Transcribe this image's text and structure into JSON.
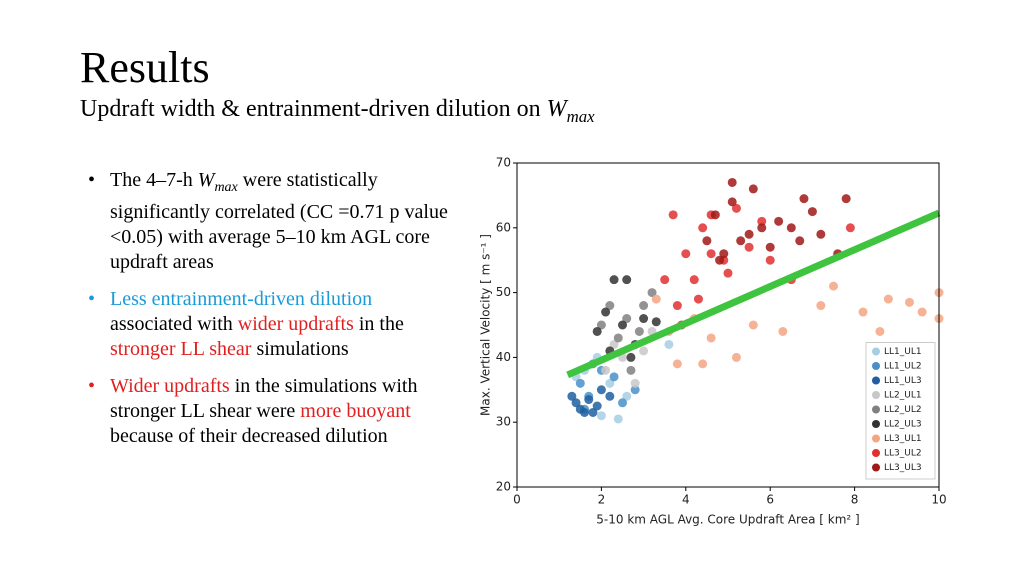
{
  "slide": {
    "title": "Results",
    "subtitle": [
      {
        "text": "Updraft width & entrainment-driven dilution on "
      },
      {
        "text": "W",
        "sub": "max"
      }
    ],
    "bullets": [
      {
        "color": "#000000",
        "segments": [
          {
            "text": "The 4–7-h "
          },
          {
            "text": "W",
            "sub": "max"
          },
          {
            "text": " were statistically significantly correlated (CC =0.71 p value <0.05) with average 5–10 km AGL core updraft areas"
          }
        ]
      },
      {
        "color": "#1a9ad6",
        "segments": [
          {
            "text": "Less entrainment-driven dilution",
            "color": "#1a9ad6"
          },
          {
            "text": " associated with "
          },
          {
            "text": "wider updrafts",
            "color": "#e02020"
          },
          {
            "text": " in the "
          },
          {
            "text": "stronger LL shear",
            "color": "#e02020"
          },
          {
            "text": " simulations"
          }
        ]
      },
      {
        "color": "#e02020",
        "segments": [
          {
            "text": "Wider updrafts",
            "color": "#e02020"
          },
          {
            "text": " in the simulations with stronger LL shear were "
          },
          {
            "text": "more buoyant",
            "color": "#e02020"
          },
          {
            "text": " because of their decreased dilution"
          }
        ]
      }
    ]
  },
  "chart_data": {
    "type": "scatter",
    "xlabel": "5-10 km AGL Avg. Core Updraft Area [ km² ]",
    "ylabel": "Max. Vertical Velocity [ m s⁻¹ ]",
    "xlim": [
      0,
      10
    ],
    "ylim": [
      20,
      70
    ],
    "xticks": [
      0,
      2,
      4,
      6,
      8,
      10
    ],
    "yticks": [
      20,
      30,
      40,
      50,
      60,
      70
    ],
    "legend": "lower right",
    "series": [
      {
        "name": "LL1_UL1",
        "color": "#a6cee3",
        "x": [
          2.0,
          2.4,
          1.6,
          2.2,
          1.9,
          2.6,
          1.4,
          3.6
        ],
        "values": [
          31,
          30.5,
          38,
          36,
          40,
          34,
          37,
          42
        ]
      },
      {
        "name": "LL1_UL2",
        "color": "#4a90c8",
        "x": [
          1.5,
          1.7,
          2.0,
          2.3,
          2.5,
          1.8,
          2.8,
          1.6
        ],
        "values": [
          36,
          34,
          38,
          37,
          33,
          39,
          35,
          32
        ]
      },
      {
        "name": "LL1_UL3",
        "color": "#1f5fa0",
        "x": [
          1.4,
          1.5,
          1.6,
          1.8,
          1.7,
          1.3,
          2.0,
          1.9,
          2.2
        ],
        "values": [
          33,
          32,
          31.5,
          31.5,
          33.5,
          34,
          35,
          32.5,
          34
        ]
      },
      {
        "name": "LL2_UL1",
        "color": "#c8c8c8",
        "x": [
          2.1,
          2.8,
          2.5,
          3.0,
          2.3,
          3.2
        ],
        "values": [
          38,
          36,
          40,
          41,
          42,
          44
        ]
      },
      {
        "name": "LL2_UL2",
        "color": "#808080",
        "x": [
          2.2,
          2.6,
          2.9,
          2.4,
          3.2,
          2.0,
          2.7,
          3.0
        ],
        "values": [
          48,
          46,
          44,
          43,
          50,
          45,
          38,
          48
        ]
      },
      {
        "name": "LL2_UL3",
        "color": "#333333",
        "x": [
          2.3,
          2.6,
          2.1,
          2.5,
          2.8,
          3.0,
          2.2,
          2.7,
          1.9,
          3.3
        ],
        "values": [
          52,
          52,
          47,
          45,
          42,
          46,
          41,
          40,
          44,
          45.5
        ]
      },
      {
        "name": "LL3_UL1",
        "color": "#f4a582",
        "x": [
          3.3,
          3.6,
          4.2,
          4.6,
          5.6,
          4.4,
          3.8,
          6.3,
          7.2,
          7.5,
          8.2,
          8.8,
          9.3,
          9.6,
          10,
          10,
          8.6,
          5.2
        ],
        "values": [
          49,
          44,
          46,
          43,
          45,
          39,
          39,
          44,
          48,
          51,
          47,
          49,
          48.5,
          47,
          50,
          46,
          44,
          40
        ]
      },
      {
        "name": "LL3_UL2",
        "color": "#e03030",
        "x": [
          3.7,
          4.6,
          4.4,
          4.0,
          4.2,
          4.6,
          3.5,
          3.8,
          5.0,
          5.5,
          4.9,
          3.9,
          6.0,
          6.5,
          7.9,
          4.3,
          5.2,
          5.8
        ],
        "values": [
          62,
          62,
          60,
          56,
          52,
          56,
          52,
          48,
          53,
          57,
          55,
          45,
          55,
          52,
          60,
          49,
          63,
          61
        ]
      },
      {
        "name": "LL3_UL3",
        "color": "#a01818",
        "x": [
          5.1,
          6.8,
          7.8,
          5.6,
          4.7,
          5.1,
          4.5,
          5.3,
          6.2,
          6.5,
          7.0,
          6.0,
          4.9,
          5.8,
          7.2,
          7.6,
          4.8,
          6.7,
          5.5
        ],
        "values": [
          67,
          64.5,
          64.5,
          66,
          62,
          64,
          58,
          58,
          61,
          60,
          62.5,
          57,
          56,
          60,
          59,
          56,
          55,
          58,
          59
        ]
      }
    ],
    "fit_line": {
      "color": "#3ec43e",
      "x": [
        1.2,
        10
      ],
      "y": [
        37.3,
        62.3
      ]
    }
  }
}
